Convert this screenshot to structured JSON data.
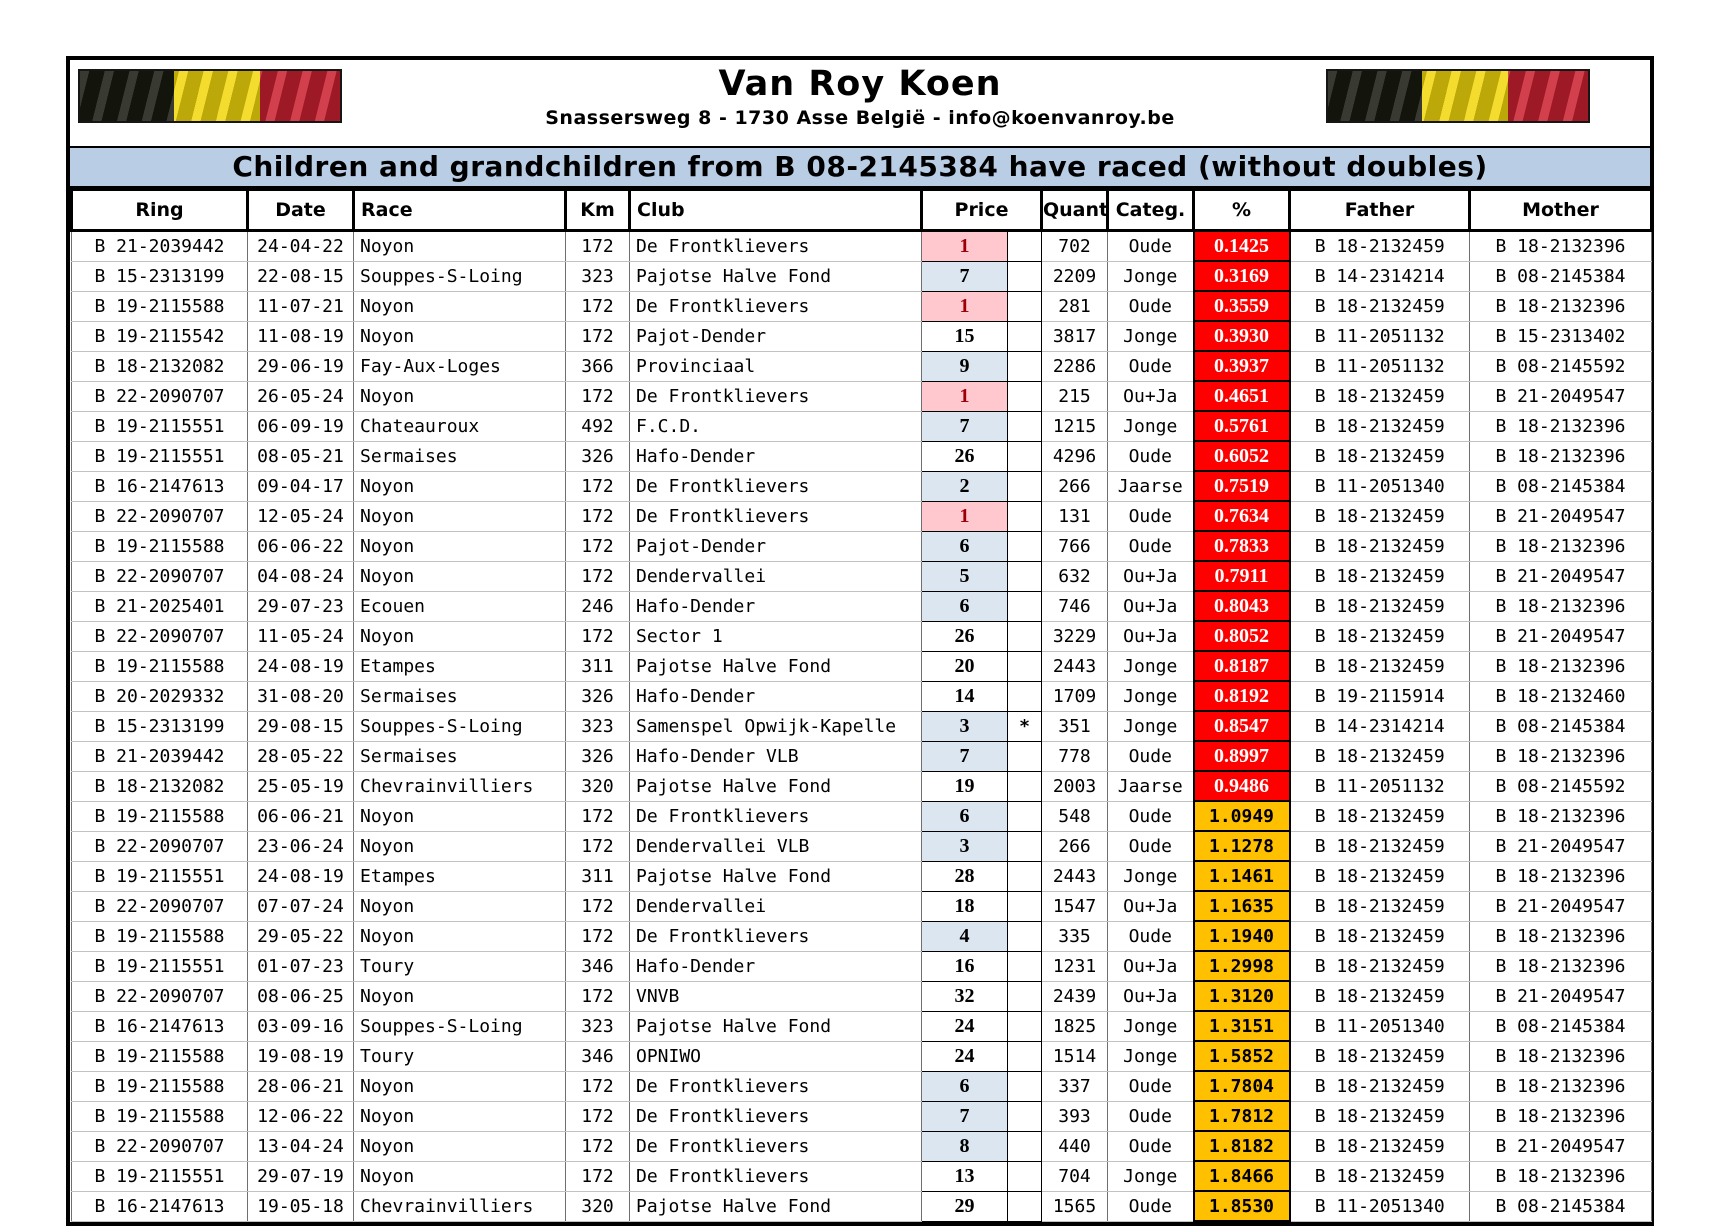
{
  "header": {
    "title": "Van Roy Koen",
    "address": "Snassersweg 8 - 1730 Asse België - info@koenvanroy.be",
    "banner": "Children and grandchildren from B 08-2145384 have raced (without doubles)",
    "flag_icon": "belgian-flag"
  },
  "colors": {
    "banner-bg": "#b9cde5",
    "pct-red-bg": "#fe0000",
    "pct-orange-bg": "#ffc000",
    "price-one-bg": "#ffc7ce",
    "price-one-text": "#9c0006",
    "price-low-bg": "#dce6f1",
    "flag-black": "#181a0f",
    "flag-yellow": "#f2d70c",
    "flag-red": "#cb2030"
  },
  "table": {
    "columns": [
      "Ring",
      "Date",
      "Race",
      "Km",
      "Club",
      "Price",
      "Quantity",
      "Categ.",
      "%",
      "Father",
      "Mother"
    ],
    "rows": [
      {
        "ring": "B 21-2039442",
        "date": "24-04-22",
        "race": "Noyon",
        "km": "172",
        "club": "De Frontklievers",
        "price": "1",
        "star": "",
        "quantity": "702",
        "categ": "Oude",
        "pct": "0.1425",
        "father": "B 18-2132459",
        "mother": "B 18-2132396"
      },
      {
        "ring": "B 15-2313199",
        "date": "22-08-15",
        "race": "Souppes-S-Loing",
        "km": "323",
        "club": "Pajotse Halve Fond",
        "price": "7",
        "star": "",
        "quantity": "2209",
        "categ": "Jonge",
        "pct": "0.3169",
        "father": "B 14-2314214",
        "mother": "B 08-2145384"
      },
      {
        "ring": "B 19-2115588",
        "date": "11-07-21",
        "race": "Noyon",
        "km": "172",
        "club": "De Frontklievers",
        "price": "1",
        "star": "",
        "quantity": "281",
        "categ": "Oude",
        "pct": "0.3559",
        "father": "B 18-2132459",
        "mother": "B 18-2132396"
      },
      {
        "ring": "B 19-2115542",
        "date": "11-08-19",
        "race": "Noyon",
        "km": "172",
        "club": "Pajot-Dender",
        "price": "15",
        "star": "",
        "quantity": "3817",
        "categ": "Jonge",
        "pct": "0.3930",
        "father": "B 11-2051132",
        "mother": "B 15-2313402"
      },
      {
        "ring": "B 18-2132082",
        "date": "29-06-19",
        "race": "Fay-Aux-Loges",
        "km": "366",
        "club": "Provinciaal",
        "price": "9",
        "star": "",
        "quantity": "2286",
        "categ": "Oude",
        "pct": "0.3937",
        "father": "B 11-2051132",
        "mother": "B 08-2145592"
      },
      {
        "ring": "B 22-2090707",
        "date": "26-05-24",
        "race": "Noyon",
        "km": "172",
        "club": "De Frontklievers",
        "price": "1",
        "star": "",
        "quantity": "215",
        "categ": "Ou+Ja",
        "pct": "0.4651",
        "father": "B 18-2132459",
        "mother": "B 21-2049547"
      },
      {
        "ring": "B 19-2115551",
        "date": "06-09-19",
        "race": "Chateauroux",
        "km": "492",
        "club": "F.C.D.",
        "price": "7",
        "star": "",
        "quantity": "1215",
        "categ": "Jonge",
        "pct": "0.5761",
        "father": "B 18-2132459",
        "mother": "B 18-2132396"
      },
      {
        "ring": "B 19-2115551",
        "date": "08-05-21",
        "race": "Sermaises",
        "km": "326",
        "club": "Hafo-Dender",
        "price": "26",
        "star": "",
        "quantity": "4296",
        "categ": "Oude",
        "pct": "0.6052",
        "father": "B 18-2132459",
        "mother": "B 18-2132396"
      },
      {
        "ring": "B 16-2147613",
        "date": "09-04-17",
        "race": "Noyon",
        "km": "172",
        "club": "De Frontklievers",
        "price": "2",
        "star": "",
        "quantity": "266",
        "categ": "Jaarse",
        "pct": "0.7519",
        "father": "B 11-2051340",
        "mother": "B 08-2145384"
      },
      {
        "ring": "B 22-2090707",
        "date": "12-05-24",
        "race": "Noyon",
        "km": "172",
        "club": "De Frontklievers",
        "price": "1",
        "star": "",
        "quantity": "131",
        "categ": "Oude",
        "pct": "0.7634",
        "father": "B 18-2132459",
        "mother": "B 21-2049547"
      },
      {
        "ring": "B 19-2115588",
        "date": "06-06-22",
        "race": "Noyon",
        "km": "172",
        "club": "Pajot-Dender",
        "price": "6",
        "star": "",
        "quantity": "766",
        "categ": "Oude",
        "pct": "0.7833",
        "father": "B 18-2132459",
        "mother": "B 18-2132396"
      },
      {
        "ring": "B 22-2090707",
        "date": "04-08-24",
        "race": "Noyon",
        "km": "172",
        "club": "Dendervallei",
        "price": "5",
        "star": "",
        "quantity": "632",
        "categ": "Ou+Ja",
        "pct": "0.7911",
        "father": "B 18-2132459",
        "mother": "B 21-2049547"
      },
      {
        "ring": "B 21-2025401",
        "date": "29-07-23",
        "race": "Ecouen",
        "km": "246",
        "club": "Hafo-Dender",
        "price": "6",
        "star": "",
        "quantity": "746",
        "categ": "Ou+Ja",
        "pct": "0.8043",
        "father": "B 18-2132459",
        "mother": "B 18-2132396"
      },
      {
        "ring": "B 22-2090707",
        "date": "11-05-24",
        "race": "Noyon",
        "km": "172",
        "club": "Sector 1",
        "price": "26",
        "star": "",
        "quantity": "3229",
        "categ": "Ou+Ja",
        "pct": "0.8052",
        "father": "B 18-2132459",
        "mother": "B 21-2049547"
      },
      {
        "ring": "B 19-2115588",
        "date": "24-08-19",
        "race": "Etampes",
        "km": "311",
        "club": "Pajotse Halve Fond",
        "price": "20",
        "star": "",
        "quantity": "2443",
        "categ": "Jonge",
        "pct": "0.8187",
        "father": "B 18-2132459",
        "mother": "B 18-2132396"
      },
      {
        "ring": "B 20-2029332",
        "date": "31-08-20",
        "race": "Sermaises",
        "km": "326",
        "club": "Hafo-Dender",
        "price": "14",
        "star": "",
        "quantity": "1709",
        "categ": "Jonge",
        "pct": "0.8192",
        "father": "B 19-2115914",
        "mother": "B 18-2132460"
      },
      {
        "ring": "B 15-2313199",
        "date": "29-08-15",
        "race": "Souppes-S-Loing",
        "km": "323",
        "club": "Samenspel Opwijk-Kapelle",
        "price": "3",
        "star": "*",
        "quantity": "351",
        "categ": "Jonge",
        "pct": "0.8547",
        "father": "B 14-2314214",
        "mother": "B 08-2145384"
      },
      {
        "ring": "B 21-2039442",
        "date": "28-05-22",
        "race": "Sermaises",
        "km": "326",
        "club": "Hafo-Dender VLB",
        "price": "7",
        "star": "",
        "quantity": "778",
        "categ": "Oude",
        "pct": "0.8997",
        "father": "B 18-2132459",
        "mother": "B 18-2132396"
      },
      {
        "ring": "B 18-2132082",
        "date": "25-05-19",
        "race": "Chevrainvilliers",
        "km": "320",
        "club": "Pajotse Halve Fond",
        "price": "19",
        "star": "",
        "quantity": "2003",
        "categ": "Jaarse",
        "pct": "0.9486",
        "father": "B 11-2051132",
        "mother": "B 08-2145592"
      },
      {
        "ring": "B 19-2115588",
        "date": "06-06-21",
        "race": "Noyon",
        "km": "172",
        "club": "De Frontklievers",
        "price": "6",
        "star": "",
        "quantity": "548",
        "categ": "Oude",
        "pct": "1.0949",
        "father": "B 18-2132459",
        "mother": "B 18-2132396"
      },
      {
        "ring": "B 22-2090707",
        "date": "23-06-24",
        "race": "Noyon",
        "km": "172",
        "club": "Dendervallei VLB",
        "price": "3",
        "star": "",
        "quantity": "266",
        "categ": "Oude",
        "pct": "1.1278",
        "father": "B 18-2132459",
        "mother": "B 21-2049547"
      },
      {
        "ring": "B 19-2115551",
        "date": "24-08-19",
        "race": "Etampes",
        "km": "311",
        "club": "Pajotse Halve Fond",
        "price": "28",
        "star": "",
        "quantity": "2443",
        "categ": "Jonge",
        "pct": "1.1461",
        "father": "B 18-2132459",
        "mother": "B 18-2132396"
      },
      {
        "ring": "B 22-2090707",
        "date": "07-07-24",
        "race": "Noyon",
        "km": "172",
        "club": "Dendervallei",
        "price": "18",
        "star": "",
        "quantity": "1547",
        "categ": "Ou+Ja",
        "pct": "1.1635",
        "father": "B 18-2132459",
        "mother": "B 21-2049547"
      },
      {
        "ring": "B 19-2115588",
        "date": "29-05-22",
        "race": "Noyon",
        "km": "172",
        "club": "De Frontklievers",
        "price": "4",
        "star": "",
        "quantity": "335",
        "categ": "Oude",
        "pct": "1.1940",
        "father": "B 18-2132459",
        "mother": "B 18-2132396"
      },
      {
        "ring": "B 19-2115551",
        "date": "01-07-23",
        "race": "Toury",
        "km": "346",
        "club": "Hafo-Dender",
        "price": "16",
        "star": "",
        "quantity": "1231",
        "categ": "Ou+Ja",
        "pct": "1.2998",
        "father": "B 18-2132459",
        "mother": "B 18-2132396"
      },
      {
        "ring": "B 22-2090707",
        "date": "08-06-25",
        "race": "Noyon",
        "km": "172",
        "club": "VNVB",
        "price": "32",
        "star": "",
        "quantity": "2439",
        "categ": "Ou+Ja",
        "pct": "1.3120",
        "father": "B 18-2132459",
        "mother": "B 21-2049547"
      },
      {
        "ring": "B 16-2147613",
        "date": "03-09-16",
        "race": "Souppes-S-Loing",
        "km": "323",
        "club": "Pajotse Halve Fond",
        "price": "24",
        "star": "",
        "quantity": "1825",
        "categ": "Jonge",
        "pct": "1.3151",
        "father": "B 11-2051340",
        "mother": "B 08-2145384"
      },
      {
        "ring": "B 19-2115588",
        "date": "19-08-19",
        "race": "Toury",
        "km": "346",
        "club": "OPNIWO",
        "price": "24",
        "star": "",
        "quantity": "1514",
        "categ": "Jonge",
        "pct": "1.5852",
        "father": "B 18-2132459",
        "mother": "B 18-2132396"
      },
      {
        "ring": "B 19-2115588",
        "date": "28-06-21",
        "race": "Noyon",
        "km": "172",
        "club": "De Frontklievers",
        "price": "6",
        "star": "",
        "quantity": "337",
        "categ": "Oude",
        "pct": "1.7804",
        "father": "B 18-2132459",
        "mother": "B 18-2132396"
      },
      {
        "ring": "B 19-2115588",
        "date": "12-06-22",
        "race": "Noyon",
        "km": "172",
        "club": "De Frontklievers",
        "price": "7",
        "star": "",
        "quantity": "393",
        "categ": "Oude",
        "pct": "1.7812",
        "father": "B 18-2132459",
        "mother": "B 18-2132396"
      },
      {
        "ring": "B 22-2090707",
        "date": "13-04-24",
        "race": "Noyon",
        "km": "172",
        "club": "De Frontklievers",
        "price": "8",
        "star": "",
        "quantity": "440",
        "categ": "Oude",
        "pct": "1.8182",
        "father": "B 18-2132459",
        "mother": "B 21-2049547"
      },
      {
        "ring": "B 19-2115551",
        "date": "29-07-19",
        "race": "Noyon",
        "km": "172",
        "club": "De Frontklievers",
        "price": "13",
        "star": "",
        "quantity": "704",
        "categ": "Jonge",
        "pct": "1.8466",
        "father": "B 18-2132459",
        "mother": "B 18-2132396"
      },
      {
        "ring": "B 16-2147613",
        "date": "19-05-18",
        "race": "Chevrainvilliers",
        "km": "320",
        "club": "Pajotse Halve Fond",
        "price": "29",
        "star": "",
        "quantity": "1565",
        "categ": "Oude",
        "pct": "1.8530",
        "father": "B 11-2051340",
        "mother": "B 08-2145384"
      }
    ]
  }
}
